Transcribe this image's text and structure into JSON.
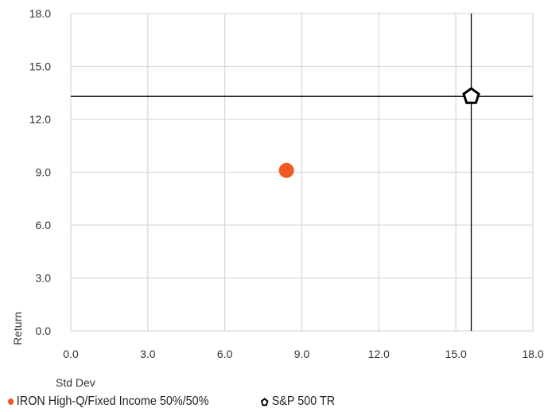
{
  "chart_data": {
    "type": "scatter",
    "xlabel": "Std Dev",
    "ylabel": "Return",
    "xlim": [
      0,
      18
    ],
    "ylim": [
      0,
      18
    ],
    "x_ticks": [
      "0.0",
      "3.0",
      "6.0",
      "9.0",
      "12.0",
      "15.0",
      "18.0"
    ],
    "y_ticks": [
      "0.0",
      "3.0",
      "6.0",
      "9.0",
      "12.0",
      "15.0",
      "18.0"
    ],
    "grid": true,
    "legend_position": "bottom-left",
    "series": [
      {
        "name": "IRON High-Q/Fixed Income 50%/50%",
        "x": 8.4,
        "y": 9.1,
        "marker": "circle",
        "color": "#f15a24"
      },
      {
        "name": "S&P 500 TR",
        "x": 15.6,
        "y": 13.3,
        "marker": "pentagon",
        "color": "#000000",
        "crosshair": true
      }
    ]
  }
}
